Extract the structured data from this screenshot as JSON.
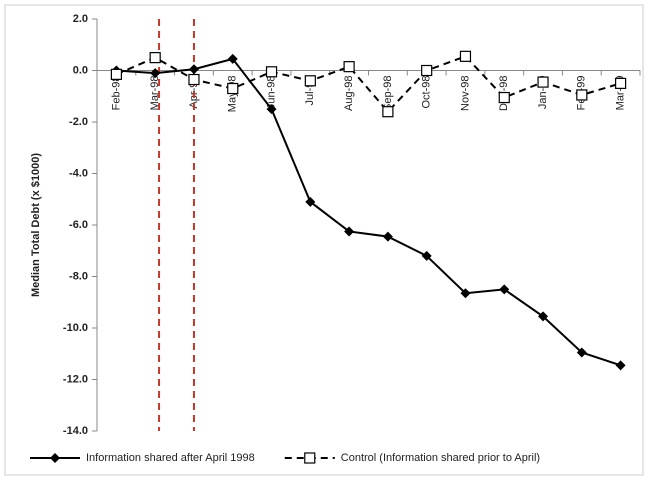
{
  "chart_data": {
    "type": "line",
    "y_label": "Median Total Debt (x $1000)",
    "categories": [
      "Feb-98",
      "Mar-98",
      "Apr-98",
      "May-98",
      "Jun-98",
      "Jul-98",
      "Aug-98",
      "Sep-98",
      "Oct-98",
      "Nov-98",
      "Dec-98",
      "Jan-99",
      "Feb-99",
      "Mar-99"
    ],
    "series": [
      {
        "name": "Information shared after April 1998",
        "color": "#000000",
        "dash": false,
        "marker": "diamond",
        "values": [
          0.0,
          -0.1,
          0.05,
          0.45,
          -1.5,
          -5.1,
          -6.25,
          -6.45,
          -7.2,
          -8.65,
          -8.5,
          -9.55,
          -10.95,
          -11.45
        ]
      },
      {
        "name": "Control (Information shared prior to April)",
        "color": "#000000",
        "dash": true,
        "marker": "square",
        "values": [
          -0.15,
          0.5,
          -0.35,
          -0.7,
          -0.05,
          -0.4,
          0.15,
          -1.6,
          0.0,
          0.55,
          -1.05,
          -0.45,
          -0.95,
          -0.5
        ]
      }
    ],
    "ylim": [
      -14,
      2
    ],
    "yticks": [
      {
        "value": 2,
        "label": "2.0"
      },
      {
        "value": 0,
        "label": "0.0"
      },
      {
        "value": -2,
        "label": "-2.0"
      },
      {
        "value": -4,
        "label": "-4.0"
      },
      {
        "value": -6,
        "label": "-6.0"
      },
      {
        "value": -8,
        "label": "-8.0"
      },
      {
        "value": -10,
        "label": "-10.0"
      },
      {
        "value": -12,
        "label": "-12.0"
      },
      {
        "value": -14,
        "label": "-14.0"
      }
    ],
    "grid": false
  }
}
